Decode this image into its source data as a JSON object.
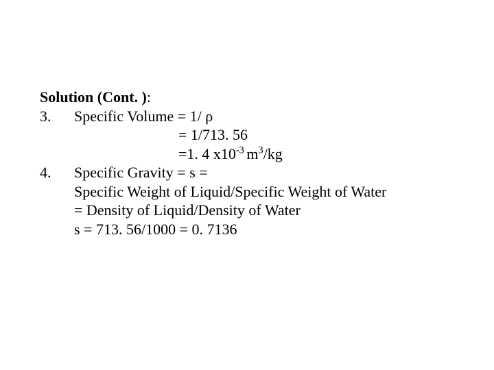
{
  "heading": {
    "title": "Solution (Cont. )",
    "colon": ":"
  },
  "items": [
    {
      "num": "3.",
      "line1_a": "Specific Volume = 1/ ",
      "line1_b": "ρ",
      "line2_a": "=",
      "line2_b": " 1/713. 56",
      "line3_a": "=1. 4 x10",
      "line3_sup1": "-3 ",
      "line3_b": "m",
      "line3_sup2": "3",
      "line3_c": "/kg"
    },
    {
      "num": "4.",
      "line1": "Specific Gravity  = s =",
      "line2": "Specific Weight of Liquid/Specific Weight of  Water",
      "line3": "= Density of Liquid/Density of Water",
      "line4": "s = 713. 56/1000 = 0. 7136"
    }
  ]
}
